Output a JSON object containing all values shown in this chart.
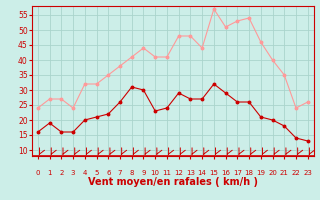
{
  "hours": [
    0,
    1,
    2,
    3,
    4,
    5,
    6,
    7,
    8,
    9,
    10,
    11,
    12,
    13,
    14,
    15,
    16,
    17,
    18,
    19,
    20,
    21,
    22,
    23
  ],
  "wind_avg": [
    16,
    19,
    16,
    16,
    20,
    21,
    22,
    26,
    31,
    30,
    23,
    24,
    29,
    27,
    27,
    32,
    29,
    26,
    26,
    21,
    20,
    18,
    14,
    13
  ],
  "wind_gust": [
    24,
    27,
    27,
    24,
    32,
    32,
    35,
    38,
    41,
    44,
    41,
    41,
    48,
    48,
    44,
    57,
    51,
    53,
    54,
    46,
    40,
    35,
    24,
    26
  ],
  "ylabel_values": [
    10,
    15,
    20,
    25,
    30,
    35,
    40,
    45,
    50,
    55
  ],
  "ylim": [
    8,
    58
  ],
  "xlim": [
    -0.5,
    23.5
  ],
  "bg_color": "#cceee8",
  "grid_color": "#aad4cc",
  "avg_color": "#cc0000",
  "gust_color": "#ff9999",
  "axis_color": "#cc0000",
  "xlabel": "Vent moyen/en rafales ( km/h )",
  "xlabel_fontsize": 7,
  "tick_label_fontsize": 5,
  "ytick_label_fontsize": 5.5
}
